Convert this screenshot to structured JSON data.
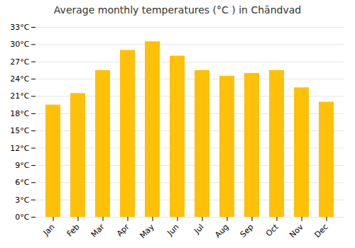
{
  "chart_data": {
    "type": "bar",
    "title": "Average monthly temperatures (°C ) in Chāndvad",
    "categories": [
      "Jan",
      "Feb",
      "Mar",
      "Apr",
      "May",
      "Jun",
      "Jul",
      "Aug",
      "Sep",
      "Oct",
      "Nov",
      "Dec"
    ],
    "values": [
      19.5,
      21.5,
      25.5,
      29.0,
      30.5,
      28.0,
      25.5,
      24.5,
      25.0,
      25.5,
      22.5,
      20.0
    ],
    "color": "#FFC107",
    "ylim": [
      0,
      33
    ],
    "yticks": [
      {
        "value": 0,
        "label": "0°C"
      },
      {
        "value": 3,
        "label": "3°C"
      },
      {
        "value": 6,
        "label": "6°C"
      },
      {
        "value": 9,
        "label": "9°C"
      },
      {
        "value": 12,
        "label": "12°C"
      },
      {
        "value": 15,
        "label": "15°C"
      },
      {
        "value": 18,
        "label": "18°C"
      },
      {
        "value": 21,
        "label": "21°C"
      },
      {
        "value": 24,
        "label": "24°C"
      },
      {
        "value": 27,
        "label": "27°C"
      },
      {
        "value": 30,
        "label": "30°C"
      },
      {
        "value": 33,
        "label": "33°C"
      }
    ],
    "grid": true
  }
}
